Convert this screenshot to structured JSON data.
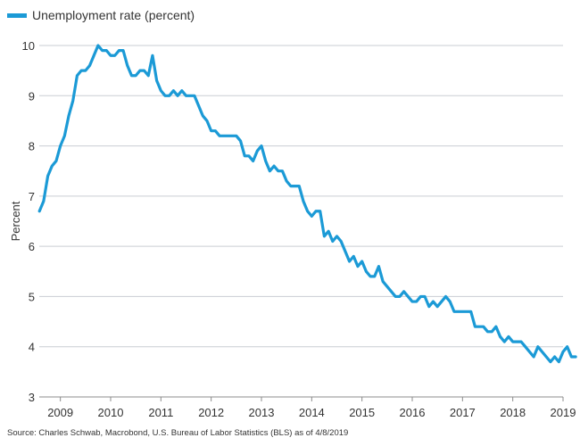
{
  "chart_data": {
    "type": "line",
    "title": "",
    "xlabel": "",
    "ylabel": "Percent",
    "ylim": [
      3,
      10
    ],
    "yticks": [
      "3",
      "4",
      "5",
      "6",
      "7",
      "8",
      "9",
      "10"
    ],
    "xlim": [
      2008.58,
      2019.0
    ],
    "xticks": [
      "2009",
      "2010",
      "2011",
      "2012",
      "2013",
      "2014",
      "2015",
      "2016",
      "2017",
      "2018",
      "2019"
    ],
    "grid": true,
    "legend_position": "top-left",
    "color": "#1b9ad6",
    "series": [
      {
        "name": "Unemployment rate (percent)",
        "start": "2008-08",
        "frequency": "monthly",
        "values": [
          6.7,
          6.9,
          7.4,
          7.6,
          7.7,
          8.0,
          8.2,
          8.6,
          8.9,
          9.4,
          9.5,
          9.5,
          9.6,
          9.8,
          10.0,
          9.9,
          9.9,
          9.8,
          9.8,
          9.9,
          9.9,
          9.6,
          9.4,
          9.4,
          9.5,
          9.5,
          9.4,
          9.8,
          9.3,
          9.1,
          9.0,
          9.0,
          9.1,
          9.0,
          9.1,
          9.0,
          9.0,
          9.0,
          8.8,
          8.6,
          8.5,
          8.3,
          8.3,
          8.2,
          8.2,
          8.2,
          8.2,
          8.2,
          8.1,
          7.8,
          7.8,
          7.7,
          7.9,
          8.0,
          7.7,
          7.5,
          7.6,
          7.5,
          7.5,
          7.3,
          7.2,
          7.2,
          7.2,
          6.9,
          6.7,
          6.6,
          6.7,
          6.7,
          6.2,
          6.3,
          6.1,
          6.2,
          6.1,
          5.9,
          5.7,
          5.8,
          5.6,
          5.7,
          5.5,
          5.4,
          5.4,
          5.6,
          5.3,
          5.2,
          5.1,
          5.0,
          5.0,
          5.1,
          5.0,
          4.9,
          4.9,
          5.0,
          5.0,
          4.8,
          4.9,
          4.8,
          4.9,
          5.0,
          4.9,
          4.7,
          4.7,
          4.7,
          4.7,
          4.7,
          4.4,
          4.4,
          4.4,
          4.3,
          4.3,
          4.4,
          4.2,
          4.1,
          4.2,
          4.1,
          4.1,
          4.1,
          4.0,
          3.9,
          3.8,
          4.0,
          3.9,
          3.8,
          3.7,
          3.8,
          3.7,
          3.9,
          4.0,
          3.8,
          3.8
        ]
      }
    ],
    "source": "Source: Charles Schwab, Macrobond, U.S. Bureau of Labor Statistics (BLS) as of 4/8/2019"
  }
}
